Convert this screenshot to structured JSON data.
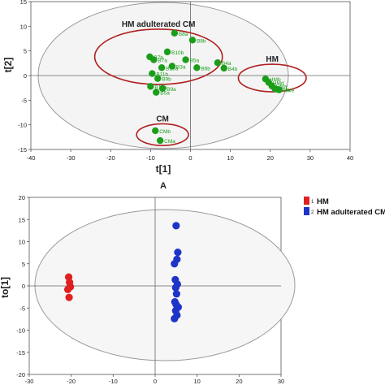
{
  "chart_data": [
    {
      "type": "scatter",
      "panel_label": "A",
      "xlabel": "t[1]",
      "ylabel": "t[2]",
      "xlim": [
        -40,
        40
      ],
      "ylim": [
        -15,
        15
      ],
      "xticks": [
        "-40",
        "-30",
        "-20",
        "-10",
        "0",
        "10",
        "20",
        "30",
        "40"
      ],
      "yticks": [
        "15",
        "10",
        "5",
        "0",
        "-5",
        "-10",
        "-15"
      ],
      "xtick_values": [
        -40,
        -30,
        -20,
        -10,
        0,
        10,
        20,
        30,
        40
      ],
      "ytick_values": [
        15,
        10,
        5,
        0,
        -5,
        -10,
        -15
      ],
      "grid": false,
      "confidence_ellipse": true,
      "point_color": "#1a9e1a",
      "group_outline_color": "#b02020",
      "groups": [
        {
          "label": "HM adulterated CM",
          "center": [
            -8,
            3.8
          ],
          "radius": [
            16,
            5.6
          ]
        },
        {
          "label": "HM",
          "center": [
            20.5,
            -0.5
          ],
          "radius": [
            8.5,
            2.8
          ]
        },
        {
          "label": "CM",
          "center": [
            -7,
            -12
          ],
          "radius": [
            6.5,
            2.2
          ]
        }
      ],
      "points": [
        {
          "label": "B8a",
          "x": -4,
          "y": 8.6
        },
        {
          "label": "B8b",
          "x": 0.5,
          "y": 7.2
        },
        {
          "label": "B10b",
          "x": -5.8,
          "y": 4.8
        },
        {
          "label": "B7b",
          "x": -10.2,
          "y": 3.8
        },
        {
          "label": "B7a",
          "x": -9.2,
          "y": 3.2
        },
        {
          "label": "B5a",
          "x": -1.2,
          "y": 3.2
        },
        {
          "label": "B4a",
          "x": 6.8,
          "y": 2.6
        },
        {
          "label": "B10a",
          "x": -7.2,
          "y": 1.6
        },
        {
          "label": "B3a",
          "x": -4.6,
          "y": 1.9
        },
        {
          "label": "B6b",
          "x": 1.6,
          "y": 1.6
        },
        {
          "label": "B4b",
          "x": 8.4,
          "y": 1.5
        },
        {
          "label": "B11b",
          "x": -9.6,
          "y": 0.4
        },
        {
          "label": "B9b",
          "x": -8.2,
          "y": -0.6
        },
        {
          "label": "B11a",
          "x": -10,
          "y": -2.2
        },
        {
          "label": "B9a",
          "x": -7,
          "y": -2.6
        },
        {
          "label": "B5a",
          "x": -8.6,
          "y": -3.4
        },
        {
          "label": "HMb",
          "x": 18.8,
          "y": -0.7
        },
        {
          "label": "HMd",
          "x": 19.6,
          "y": -1.4
        },
        {
          "label": "HMa",
          "x": 20.4,
          "y": -2.1
        },
        {
          "label": "HMc",
          "x": 21.2,
          "y": -2.7
        },
        {
          "label": "HMe",
          "x": 22.2,
          "y": -2.9
        },
        {
          "label": "CMb",
          "x": -8.8,
          "y": -11.2
        },
        {
          "label": "CMa",
          "x": -7.6,
          "y": -13.2
        }
      ]
    },
    {
      "type": "scatter",
      "xlabel": "",
      "ylabel": "to[1]",
      "xlim": [
        -30,
        30
      ],
      "ylim": [
        -20,
        20
      ],
      "xticks": [
        "-30",
        "-20",
        "-10",
        "0",
        "10",
        "20",
        "30"
      ],
      "yticks": [
        "20",
        "15",
        "10",
        "5",
        "0",
        "-5",
        "-10",
        "-15",
        "-20"
      ],
      "xtick_values": [
        -30,
        -20,
        -10,
        0,
        10,
        20,
        30
      ],
      "ytick_values": [
        20,
        15,
        10,
        5,
        0,
        -5,
        -10,
        -15,
        -20
      ],
      "grid": false,
      "confidence_ellipse": true,
      "legend_position": "top-right",
      "legend": [
        {
          "number": "1",
          "name": "HM",
          "color": "#e02020"
        },
        {
          "number": "2",
          "name": "HM adulterated CM",
          "color": "#1e34c8"
        }
      ],
      "series": [
        {
          "name": "HM",
          "color": "#e02020",
          "x": [
            -20.6,
            -20.4,
            -20.2,
            -20.8,
            -20.5
          ],
          "y": [
            2.0,
            0.8,
            -0.2,
            -0.8,
            -2.6
          ]
        },
        {
          "name": "HM adulterated CM",
          "color": "#1e34c8",
          "x": [
            5.0,
            5.4,
            5.2,
            4.6,
            4.8,
            5.3,
            4.9,
            5.1,
            4.7,
            5.0,
            5.5,
            4.9,
            5.2,
            4.6
          ],
          "y": [
            13.6,
            7.6,
            6.0,
            5.0,
            1.4,
            0.4,
            -0.4,
            -1.8,
            -3.6,
            -4.2,
            -4.8,
            -5.6,
            -6.6,
            -7.4
          ]
        }
      ]
    }
  ]
}
